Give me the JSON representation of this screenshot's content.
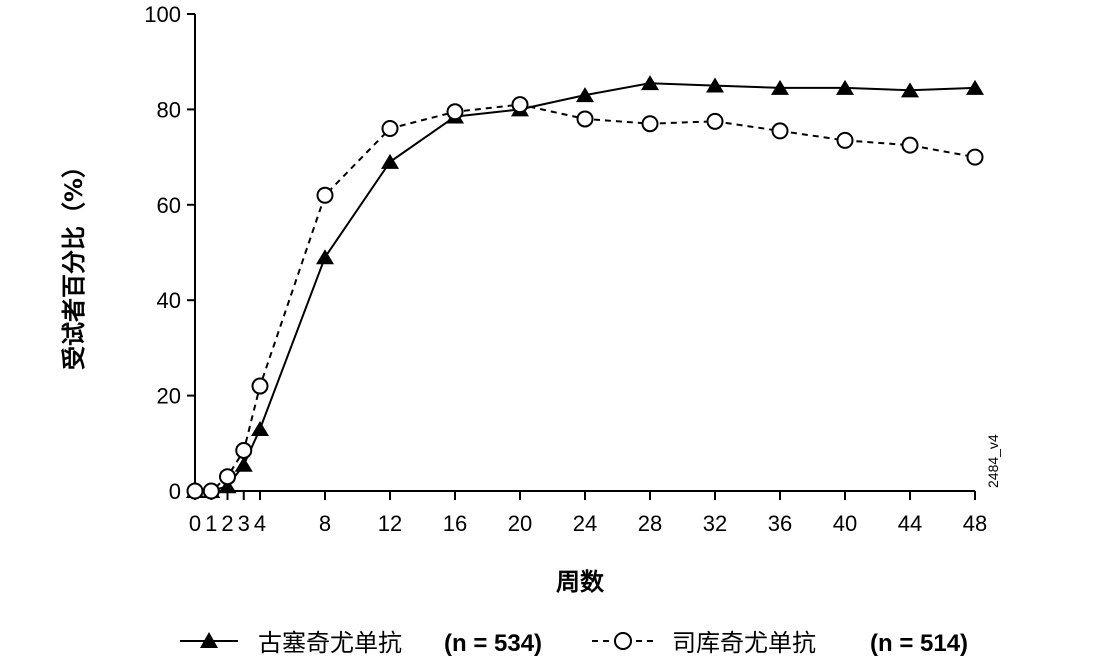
{
  "chart_data": {
    "type": "line",
    "xlabel": "周数",
    "ylabel": "受试者百分比（%）",
    "xlim": [
      0,
      48
    ],
    "ylim": [
      0,
      100
    ],
    "x_ticks": [
      0,
      1,
      2,
      3,
      4,
      8,
      12,
      16,
      20,
      24,
      28,
      32,
      36,
      40,
      44,
      48
    ],
    "y_ticks": [
      0,
      20,
      40,
      60,
      80,
      100
    ],
    "grid": false,
    "legend_position": "bottom",
    "figure_code": "2484_v4",
    "series": [
      {
        "name": "古塞奇尤单抗",
        "n_label": "(n = 534)",
        "marker": "filled-triangle",
        "line_style": "solid",
        "color": "#000000",
        "x": [
          0,
          1,
          2,
          3,
          4,
          8,
          12,
          16,
          20,
          24,
          28,
          32,
          36,
          40,
          44,
          48
        ],
        "values": [
          0,
          0,
          1,
          5.5,
          13,
          49,
          69,
          78.5,
          80,
          83,
          85.5,
          85,
          84.5,
          84.5,
          84,
          84.5
        ]
      },
      {
        "name": "司库奇尤单抗",
        "n_label": "(n = 514)",
        "marker": "open-circle",
        "line_style": "dashed",
        "color": "#000000",
        "x": [
          0,
          1,
          2,
          3,
          4,
          8,
          12,
          16,
          20,
          24,
          28,
          32,
          36,
          40,
          44,
          48
        ],
        "values": [
          0,
          0,
          3,
          8.5,
          22,
          62,
          76,
          79.5,
          81,
          78,
          77,
          77.5,
          75.5,
          73.5,
          72.5,
          70
        ]
      }
    ]
  }
}
